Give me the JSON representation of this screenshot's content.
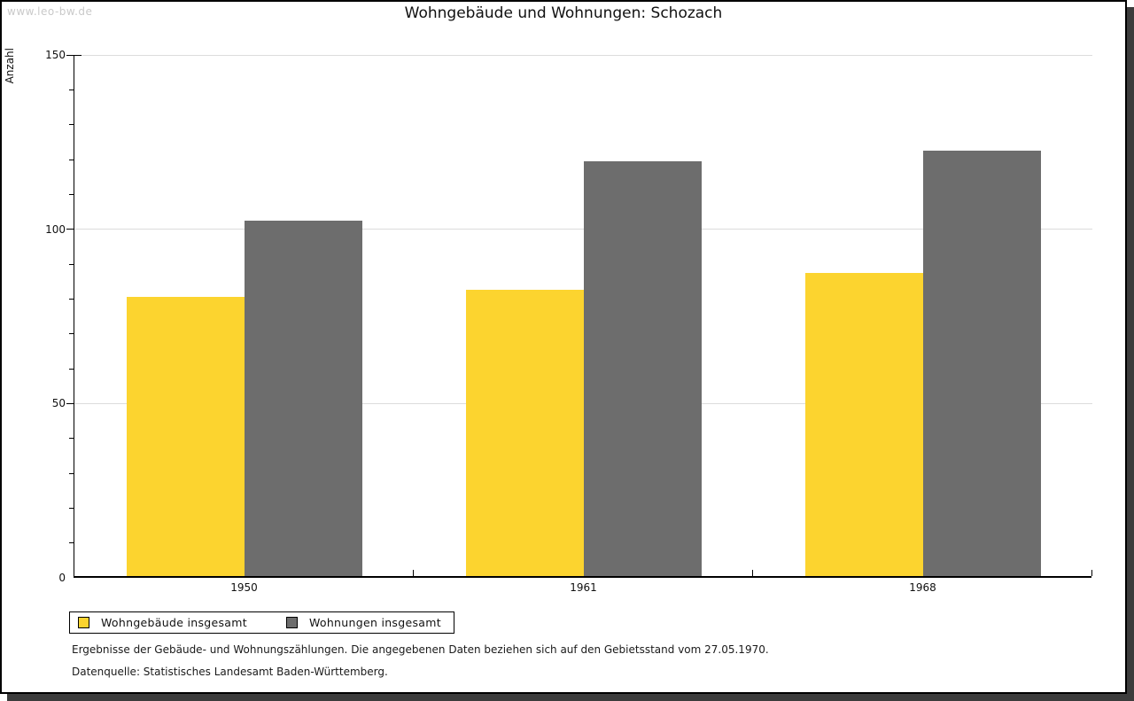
{
  "window": {
    "watermark": "www.leo-bw.de"
  },
  "title": "Wohngebäude und Wohnungen: Schozach",
  "chart_data": {
    "type": "bar",
    "title": "Wohngebäude und Wohnungen: Schozach",
    "xlabel": "",
    "ylabel": "Anzahl",
    "categories": [
      "1950",
      "1961",
      "1968"
    ],
    "series": [
      {
        "name": "Wohngebäude insgesamt",
        "color": "#fcd42f",
        "values": [
          80,
          82,
          87
        ]
      },
      {
        "name": "Wohnungen insgesamt",
        "color": "#6d6d6d",
        "values": [
          102,
          119,
          122
        ]
      }
    ],
    "ylim": [
      0,
      150
    ],
    "ytick_major": 50,
    "ytick_minor": 10,
    "grid": "horizontal-major-lines",
    "legend_position": "bottom-left",
    "colors": {
      "gridline": "#dcdcdc",
      "axis": "#000000",
      "text": "#111111"
    }
  },
  "footnotes": [
    "Ergebnisse der Gebäude- und Wohnungszählungen. Die angegebenen Daten beziehen sich auf den Gebietsstand vom 27.05.1970.",
    "Datenquelle: Statistisches Landesamt Baden-Württemberg."
  ]
}
